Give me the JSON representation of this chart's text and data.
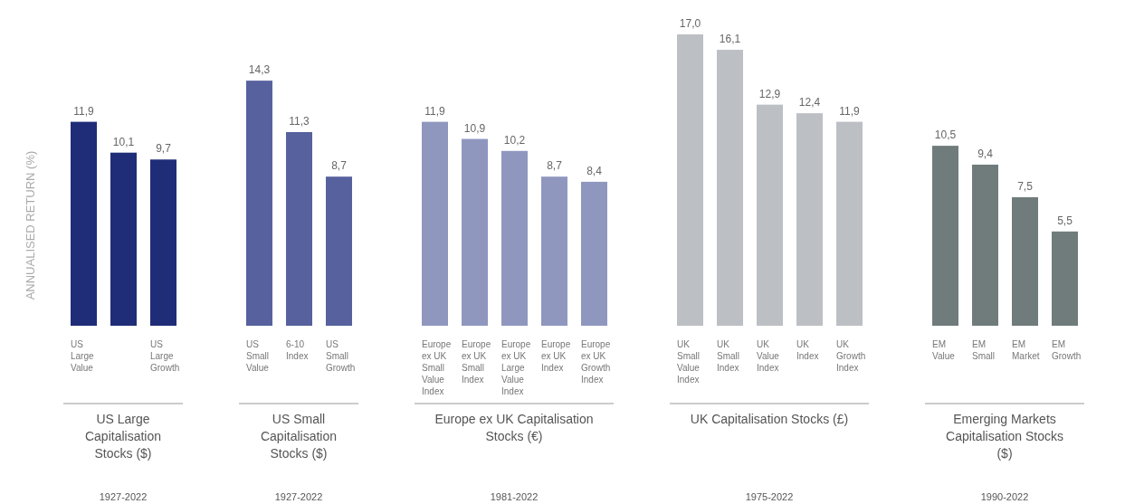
{
  "chart_data": [
    {
      "type": "bar",
      "ylabel": "ANNUALISED RETURN (%)",
      "xlabel": "US Large Capitalisation Stocks ($)",
      "annotations": [
        "1927-2022"
      ],
      "categories": [
        "US Large Value",
        null,
        "US Large Growth"
      ],
      "values": [
        11.9,
        10.1,
        9.7
      ],
      "value_labels": [
        "11,9",
        "10,1",
        "9,7"
      ],
      "color": "#1f2d78"
    },
    {
      "type": "bar",
      "xlabel": "US Small Capitalisation Stocks ($)",
      "annotations": [
        "1927-2022"
      ],
      "categories": [
        "US Small Value",
        "6-10 Index",
        "US Small Growth"
      ],
      "values": [
        14.3,
        11.3,
        8.7
      ],
      "value_labels": [
        "14,3",
        "11,3",
        "8,7"
      ],
      "color": "#56619e"
    },
    {
      "type": "bar",
      "xlabel": "Europe ex UK Capitalisation Stocks (€)",
      "annotations": [
        "1981-2022"
      ],
      "categories": [
        "Europe ex UK Small Value Index",
        "Europe ex UK Small Index",
        "Europe ex UK Large Value Index",
        "Europe ex UK Index",
        "Europe ex UK Growth Index"
      ],
      "values": [
        11.9,
        10.9,
        10.2,
        8.7,
        8.4
      ],
      "value_labels": [
        "11,9",
        "10,9",
        "10,2",
        "8,7",
        "8,4"
      ],
      "color": "#8f97bf"
    },
    {
      "type": "bar",
      "xlabel": "UK Capitalisation Stocks (£)",
      "annotations": [
        "1975-2022"
      ],
      "categories": [
        "UK Small Value Index",
        "UK Small Index",
        "UK Value Index",
        "UK Index",
        "UK Growth Index"
      ],
      "values": [
        17.0,
        16.1,
        12.9,
        12.4,
        11.9
      ],
      "value_labels": [
        "17,0",
        "16,1",
        "12,9",
        "12,4",
        "11,9"
      ],
      "color": "#bcbfc3"
    },
    {
      "type": "bar",
      "xlabel": "Emerging Markets Capitalisation Stocks ($)",
      "annotations": [
        "1990-2022"
      ],
      "categories": [
        "EM Value",
        "EM Small",
        "EM Market",
        "EM Growth"
      ],
      "values": [
        10.5,
        9.4,
        7.5,
        5.5
      ],
      "value_labels": [
        "10,5",
        "9,4",
        "7,5",
        "5,5"
      ],
      "color": "#707c7c"
    }
  ]
}
